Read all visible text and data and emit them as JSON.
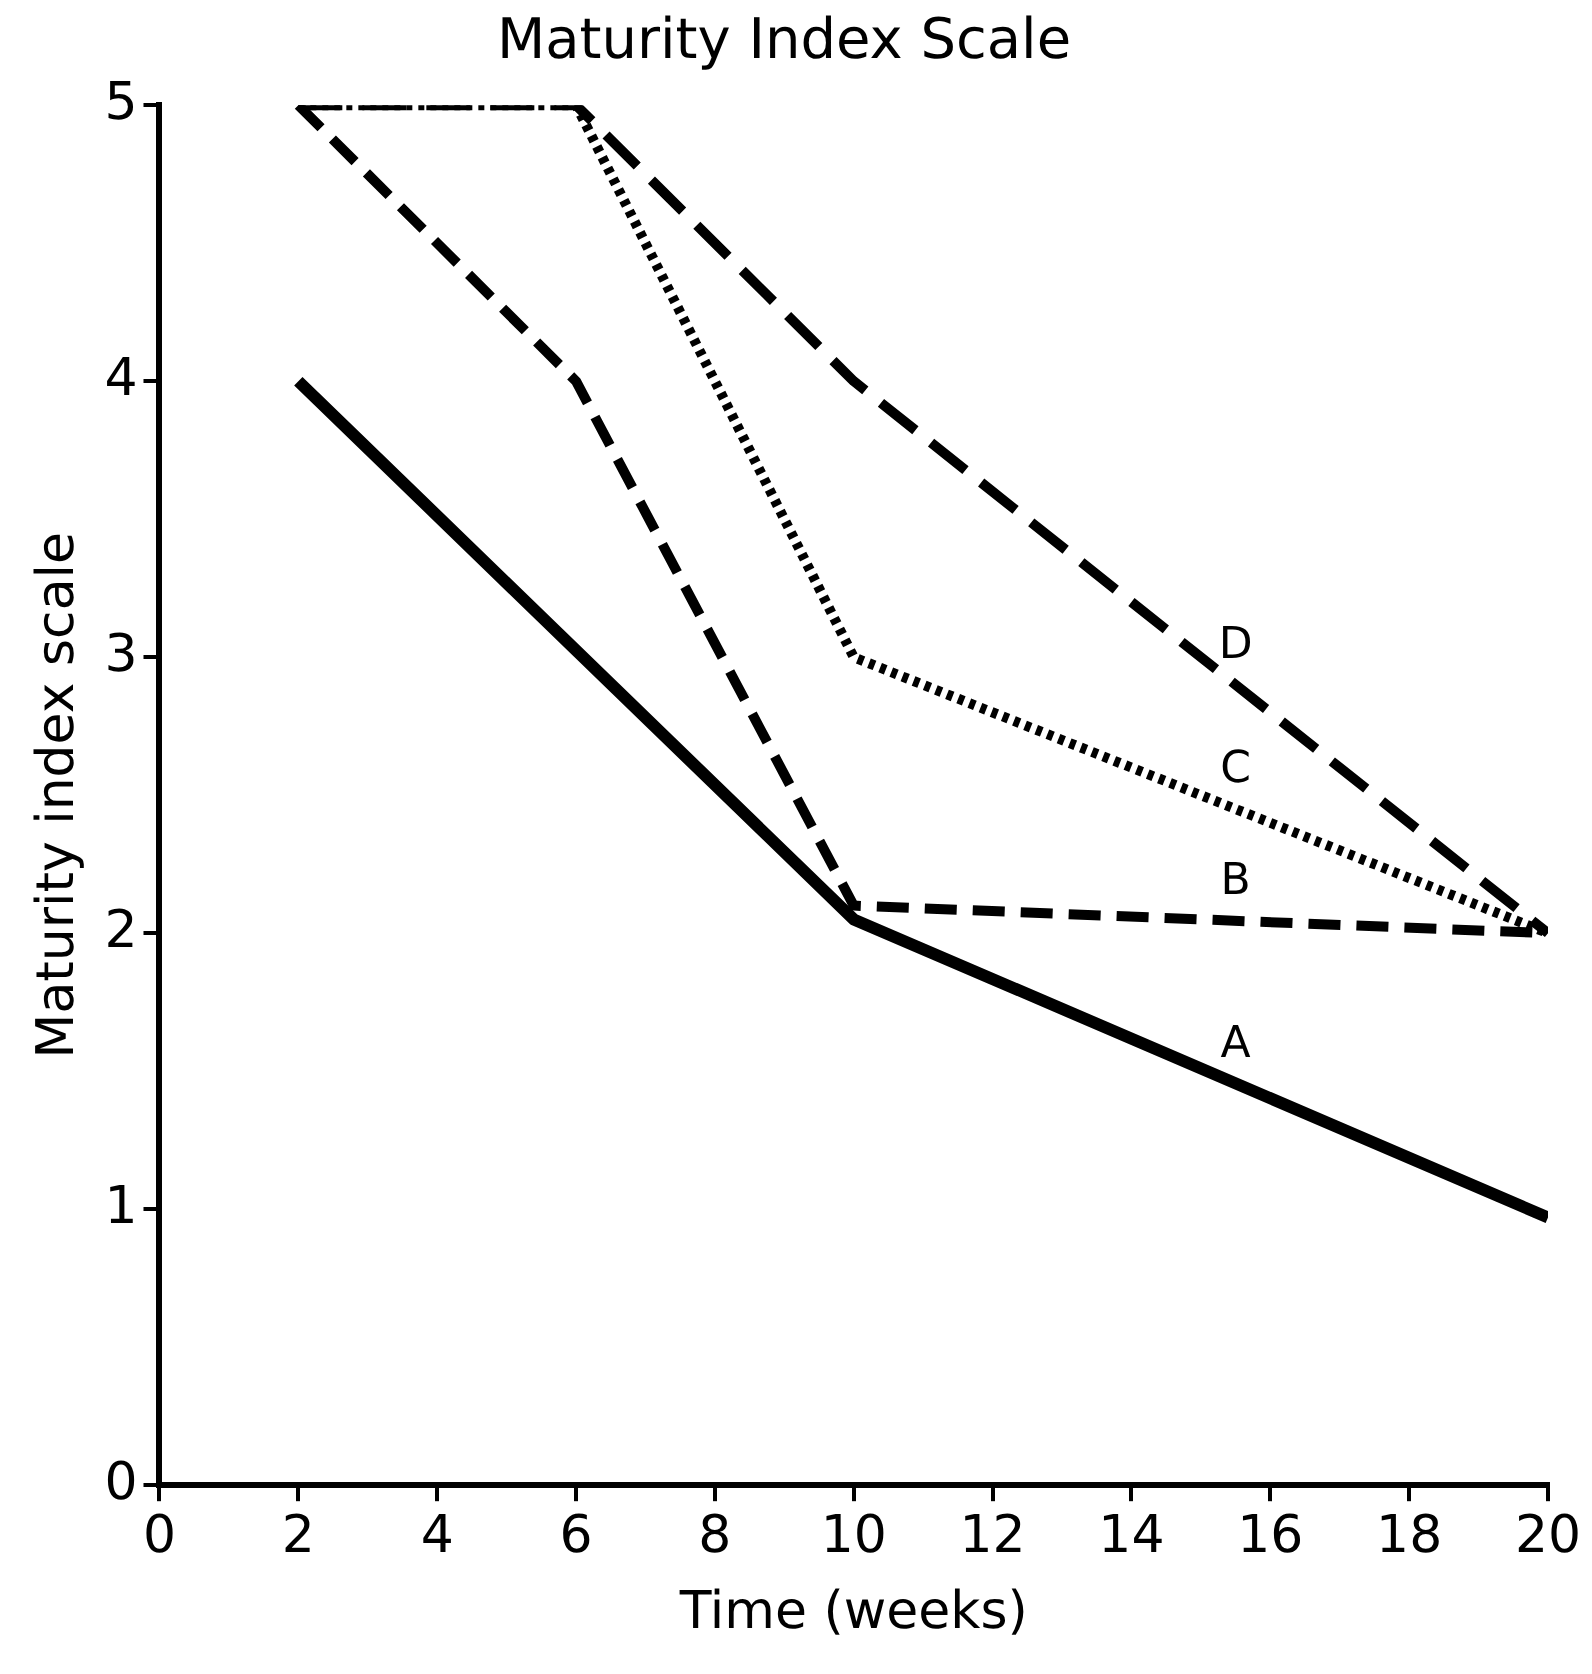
{
  "chart_data": {
    "type": "line",
    "title": "Maturity Index Scale",
    "xlabel": "Time (weeks)",
    "ylabel": "Maturity index scale",
    "xlim": [
      0,
      20
    ],
    "xticks": [
      0,
      2,
      4,
      6,
      8,
      10,
      12,
      14,
      16,
      18,
      20
    ],
    "ylim": [
      0,
      5
    ],
    "yticks": [
      0,
      1,
      2,
      3,
      4,
      5
    ],
    "grid": false,
    "legend": false,
    "marker": "none",
    "series": [
      {
        "name": "A",
        "color": "#000000",
        "line_style": "solid",
        "x": [
          2,
          10,
          20
        ],
        "values": [
          4,
          2.05,
          0.97
        ]
      },
      {
        "name": "B",
        "color": "#000000",
        "line_style": "dashed",
        "x": [
          2,
          6,
          10,
          20
        ],
        "values": [
          5,
          4,
          2.1,
          2.0
        ]
      },
      {
        "name": "C",
        "color": "#000000",
        "line_style": "dotted",
        "x": [
          2,
          6,
          10,
          20
        ],
        "values": [
          5,
          5,
          3,
          2
        ]
      },
      {
        "name": "D",
        "color": "#000000",
        "line_style": "dashed",
        "x": [
          2,
          6,
          10,
          20
        ],
        "values": [
          5,
          5,
          4,
          2
        ]
      }
    ]
  }
}
